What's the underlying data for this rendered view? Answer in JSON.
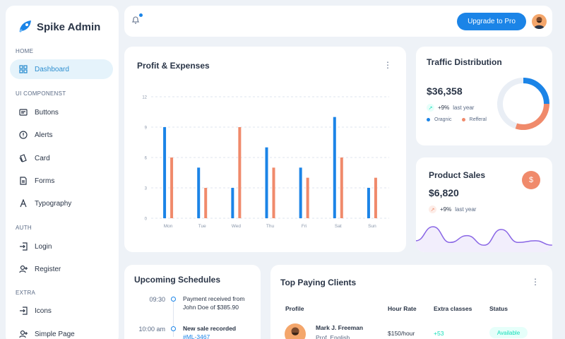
{
  "brand": {
    "name": "Spike Admin",
    "accent": "#1b84e7"
  },
  "sidebar": {
    "sections": [
      {
        "caption": "HOME",
        "items": [
          {
            "label": "Dashboard",
            "icon": "dashboard-icon",
            "active": true
          }
        ]
      },
      {
        "caption": "UI COMPONENST",
        "items": [
          {
            "label": "Buttons",
            "icon": "buttons-icon"
          },
          {
            "label": "Alerts",
            "icon": "alert-icon"
          },
          {
            "label": "Card",
            "icon": "card-icon"
          },
          {
            "label": "Forms",
            "icon": "forms-icon"
          },
          {
            "label": "Typography",
            "icon": "typography-icon"
          }
        ]
      },
      {
        "caption": "AUTH",
        "items": [
          {
            "label": "Login",
            "icon": "login-icon"
          },
          {
            "label": "Register",
            "icon": "register-icon"
          }
        ]
      },
      {
        "caption": "EXTRA",
        "items": [
          {
            "label": "Icons",
            "icon": "icons-icon"
          },
          {
            "label": "Simple Page",
            "icon": "simple-page-icon"
          }
        ]
      }
    ]
  },
  "header": {
    "upgrade_label": "Upgrade to Pro",
    "notification_icon": "bell-icon"
  },
  "profit_expenses": {
    "title": "Profit & Expenses",
    "colors": {
      "profit": "#1b84e7",
      "expenses": "#f08a6b"
    },
    "chart_data": {
      "type": "bar",
      "categories": [
        "Mon",
        "Tue",
        "Wed",
        "Thu",
        "Fri",
        "Sat",
        "Sun"
      ],
      "series": [
        {
          "values": [
            9,
            5,
            3,
            7,
            5,
            10,
            3
          ]
        },
        {
          "values": [
            6,
            3,
            9,
            5,
            4,
            6,
            4
          ]
        }
      ],
      "ylim": [
        0,
        12
      ],
      "yticks": [
        0,
        3,
        6,
        9,
        12
      ],
      "grid": true
    }
  },
  "traffic": {
    "title": "Traffic Distribution",
    "amount": "$36,358",
    "trend": "+9%",
    "trend_suffix": "last year",
    "legend": [
      "Oragnic",
      "Refferal"
    ],
    "colors": {
      "organic": "#1b84e7",
      "referral": "#f08a6b",
      "rest": "#e9eef5"
    },
    "chart_data": {
      "type": "pie",
      "categories": [
        "Oragnic",
        "Refferal",
        "Other"
      ],
      "values": [
        25,
        30,
        45
      ]
    }
  },
  "product_sales": {
    "title": "Product Sales",
    "amount": "$6,820",
    "trend": "+9%",
    "trend_suffix": "last year",
    "badge_icon": "dollar-icon",
    "line_color": "#8965e5",
    "chart_data": {
      "type": "area",
      "values": [
        25,
        66,
        20,
        40,
        12,
        58,
        20,
        25,
        12
      ]
    }
  },
  "schedules": {
    "title": "Upcoming Schedules",
    "items": [
      {
        "time": "09:30",
        "text": "Payment received from John Doe of $385.90"
      },
      {
        "time": "10:00 am",
        "text": "New sale recorded",
        "tag": "#ML-3467"
      }
    ]
  },
  "clients": {
    "title": "Top Paying Clients",
    "headers": [
      "Profile",
      "Hour Rate",
      "Extra classes",
      "Status"
    ],
    "rows": [
      {
        "name": "Mark J. Freeman",
        "role": "Prof. English",
        "rate": "$150/hour",
        "extra": "+53",
        "status": "Available"
      }
    ]
  }
}
